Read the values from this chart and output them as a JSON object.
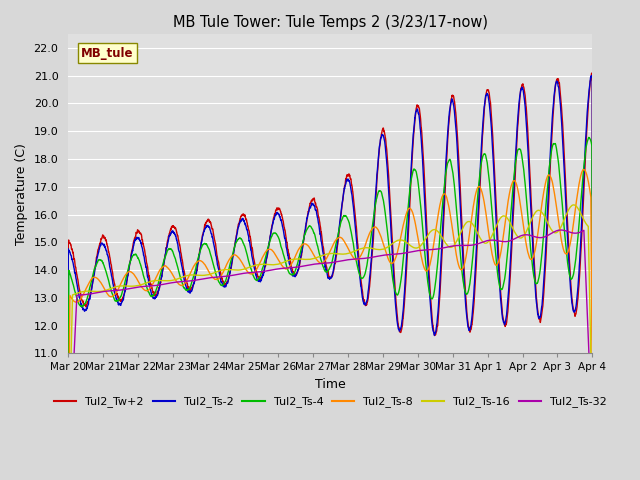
{
  "title": "MB Tule Tower: Tule Temps 2 (3/23/17-now)",
  "xlabel": "Time",
  "ylabel": "Temperature (C)",
  "ylim": [
    11.0,
    22.5
  ],
  "yticks": [
    11.0,
    12.0,
    13.0,
    14.0,
    15.0,
    16.0,
    17.0,
    18.0,
    19.0,
    20.0,
    21.0,
    22.0
  ],
  "background_color": "#d8d8d8",
  "plot_bg_color": "#e0e0e0",
  "grid_color": "#ffffff",
  "series": {
    "Tul2_Tw+2": {
      "color": "#cc0000",
      "linewidth": 1.0
    },
    "Tul2_Ts-2": {
      "color": "#0000cc",
      "linewidth": 1.0
    },
    "Tul2_Ts-4": {
      "color": "#00bb00",
      "linewidth": 1.0
    },
    "Tul2_Ts-8": {
      "color": "#ff8800",
      "linewidth": 1.0
    },
    "Tul2_Ts-16": {
      "color": "#cccc00",
      "linewidth": 1.0
    },
    "Tul2_Ts-32": {
      "color": "#aa00aa",
      "linewidth": 1.0
    }
  },
  "xtick_labels": [
    "Mar 20",
    "Mar 21",
    "Mar 22",
    "Mar 23",
    "Mar 24",
    "Mar 25",
    "Mar 26",
    "Mar 27",
    "Mar 28",
    "Mar 29",
    "Mar 30",
    "Mar 31",
    "Apr 1",
    "Apr 2",
    "Apr 3",
    "Apr 4"
  ],
  "station_label": "MB_tule",
  "station_label_color": "#800000",
  "station_box_color": "#ffffcc",
  "station_box_edge": "#888800",
  "figsize": [
    6.4,
    4.8
  ],
  "dpi": 100
}
